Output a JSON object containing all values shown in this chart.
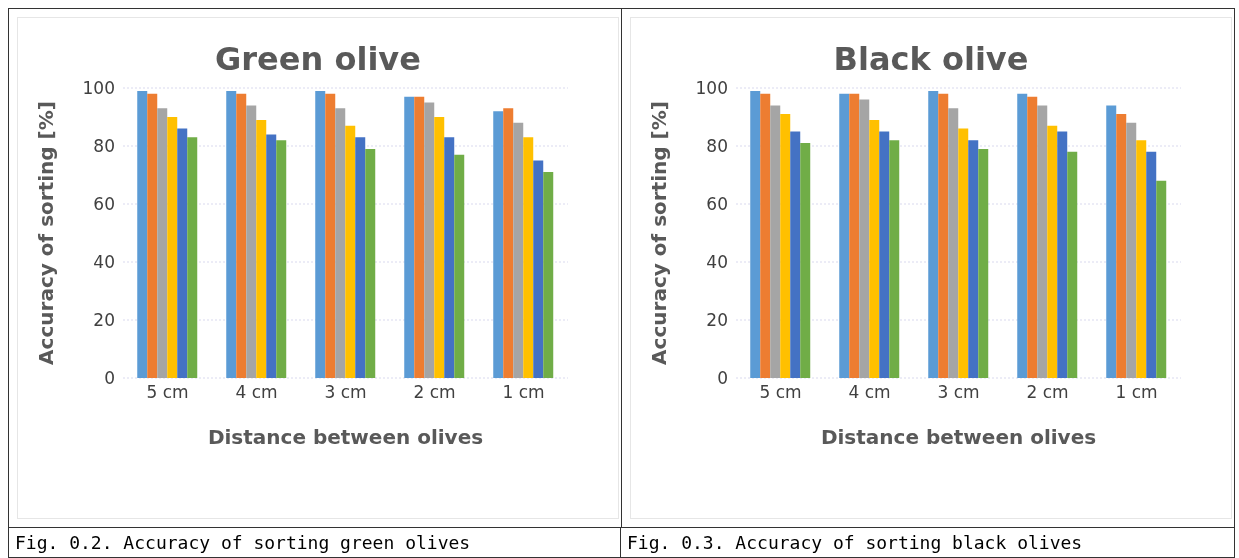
{
  "chart_data": [
    {
      "type": "bar",
      "title": "Green olive",
      "xlabel": "Distance between olives",
      "ylabel": "Accuracy of sorting [%]",
      "categories": [
        "5 cm",
        "4 cm",
        "3 cm",
        "2 cm",
        "1 cm"
      ],
      "series": [
        {
          "color": "#5b9bd5",
          "values": [
            99,
            99,
            99,
            97,
            92
          ]
        },
        {
          "color": "#ed7d31",
          "values": [
            98,
            98,
            98,
            97,
            93
          ]
        },
        {
          "color": "#a5a5a5",
          "values": [
            93,
            94,
            93,
            95,
            88
          ]
        },
        {
          "color": "#ffc000",
          "values": [
            90,
            89,
            87,
            90,
            83
          ]
        },
        {
          "color": "#4472c4",
          "values": [
            86,
            84,
            83,
            83,
            75
          ]
        },
        {
          "color": "#70ad47",
          "values": [
            83,
            82,
            79,
            77,
            71
          ]
        }
      ],
      "ylim": [
        0,
        100
      ],
      "yticks": [
        0,
        20,
        40,
        60,
        80,
        100
      ],
      "grid": "y",
      "legend": false,
      "annotations": [
        "Fig. 0.2.  Accuracy of sorting green olives"
      ]
    },
    {
      "type": "bar",
      "title": "Black olive",
      "xlabel": "Distance between olives",
      "ylabel": "Accuracy of sorting [%]",
      "categories": [
        "5 cm",
        "4 cm",
        "3 cm",
        "2 cm",
        "1 cm"
      ],
      "series": [
        {
          "color": "#5b9bd5",
          "values": [
            99,
            98,
            99,
            98,
            94
          ]
        },
        {
          "color": "#ed7d31",
          "values": [
            98,
            98,
            98,
            97,
            91
          ]
        },
        {
          "color": "#a5a5a5",
          "values": [
            94,
            96,
            93,
            94,
            88
          ]
        },
        {
          "color": "#ffc000",
          "values": [
            91,
            89,
            86,
            87,
            82
          ]
        },
        {
          "color": "#4472c4",
          "values": [
            85,
            85,
            82,
            85,
            78
          ]
        },
        {
          "color": "#70ad47",
          "values": [
            81,
            82,
            79,
            78,
            68
          ]
        }
      ],
      "ylim": [
        0,
        100
      ],
      "yticks": [
        0,
        20,
        40,
        60,
        80,
        100
      ],
      "grid": "y",
      "legend": false,
      "annotations": [
        "Fig. 0.3.  Accuracy of sorting black olives"
      ]
    }
  ]
}
